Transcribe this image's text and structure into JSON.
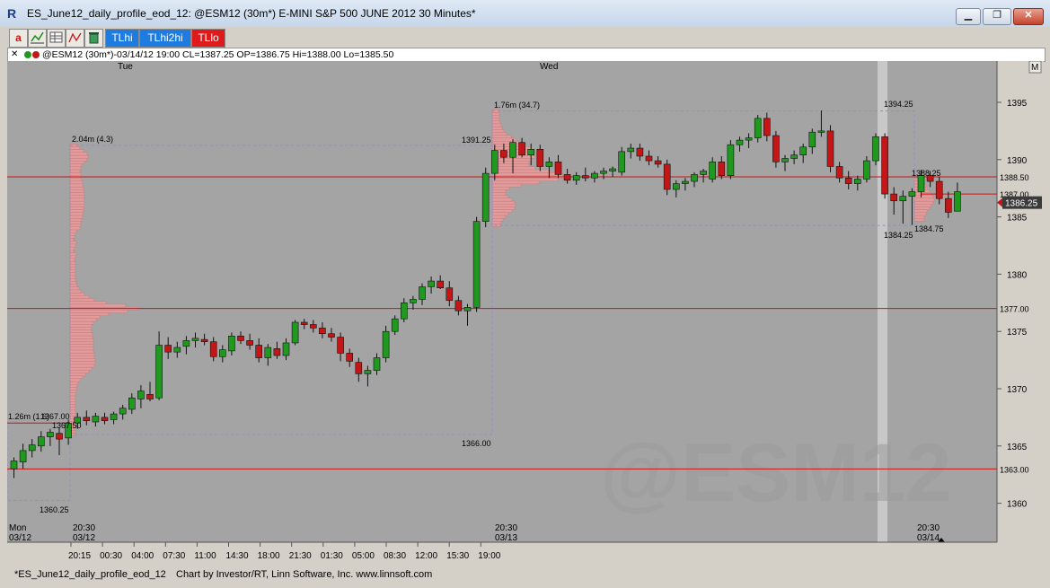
{
  "window": {
    "title": "ES_June12_daily_profile_eod_12: @ESM12 (30m*) E-MINI S&P 500 JUNE 2012 30 Minutes*",
    "minimize_label": "▁",
    "restore_label": "❐",
    "close_label": "✕"
  },
  "toolbar": {
    "a_label": "a",
    "tlhi_label": "TLhi",
    "tlhi2hi_label": "TLhi2hi",
    "tllo_label": "TLlo",
    "colors": {
      "tlhi": "#1e7be0",
      "tlhi2hi": "#1e7be0",
      "tllo": "#e01a1a"
    }
  },
  "infobar": {
    "close_glyph": "✕",
    "text": "@ESM12 (30m*)-03/14/12 19:00 CL=1387.25 OP=1386.75 Hi=1388.00 Lo=1385.50"
  },
  "chart": {
    "day_labels": {
      "tue": "Tue",
      "wed": "Wed"
    },
    "m_button": "M",
    "watermark": "@ESM12",
    "price_axis": [
      "1395",
      "1390",
      "1385",
      "1380",
      "1375",
      "1370",
      "1365",
      "1360"
    ],
    "price_tags": {
      "p1388_50": "1388.50",
      "p1387_00": "1387.00",
      "p1377_00": "1377.00",
      "p1363_00": "1363.00",
      "last": "1386.25"
    },
    "annotations": {
      "pA_label": "1.26m (1.6)",
      "pA_high": "1367.00",
      "pA_close": "1367.50",
      "pA_low": "1360.25",
      "pB_label": "2.04m (4.3)",
      "pB_high": "1391.25",
      "pB_low": "1366.00",
      "pC_label": "1.76m (34.7)",
      "pC_high": "1394.25",
      "pC_low": "1384.25",
      "pD_high": "1388.25",
      "pD_low": "1384.75"
    },
    "date_labels": {
      "mon": "Mon",
      "d0312a": "03/12",
      "t2030a": "20:30",
      "d0312b": "03/12",
      "t2030b": "20:30",
      "d0313": "03/13",
      "t2030c": "20:30",
      "d0314": "03/14"
    },
    "time_axis": [
      "20:15",
      "00:30",
      "04:00",
      "07:30",
      "11:00",
      "14:30",
      "18:00",
      "21:30",
      "01:30",
      "05:00",
      "08:30",
      "12:00",
      "15:30",
      "19:00"
    ]
  },
  "status": {
    "tab": "*ES_June12_daily_profile_eod_12",
    "credit": "Chart by Investor/RT, Linn Software, Inc. www.linnsoft.com"
  },
  "colors": {
    "up_candle": "#1f9a1f",
    "down_candle": "#c41616",
    "profile": "#e29a9a",
    "level_line": "#c41616",
    "chart_bg": "#a4a4a4"
  }
}
